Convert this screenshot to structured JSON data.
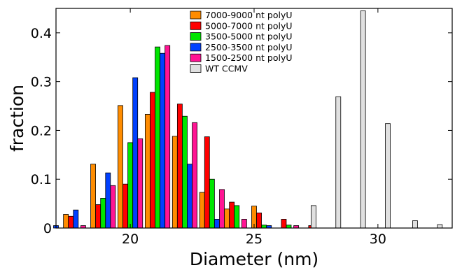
{
  "chart_data": {
    "type": "bar",
    "xlabel": "Diameter (nm)",
    "ylabel": "fraction",
    "xlim": [
      17.0,
      33.0
    ],
    "ylim": [
      0,
      0.45
    ],
    "xticks": [
      20,
      25,
      30
    ],
    "yticks": [
      0,
      0.1,
      0.2,
      0.3,
      0.4
    ],
    "ytick_labels": [
      "0",
      "0.1",
      "0.2",
      "0.3",
      "0.4"
    ],
    "grid": false,
    "legend_position": "top-center",
    "series": [
      {
        "name": "7000-9000 nt polyU",
        "color": "#ff8c00",
        "points": [
          {
            "x": 17.4,
            "y": 0.028
          },
          {
            "x": 18.5,
            "y": 0.131
          },
          {
            "x": 19.6,
            "y": 0.251
          },
          {
            "x": 20.7,
            "y": 0.233
          },
          {
            "x": 21.8,
            "y": 0.188
          },
          {
            "x": 22.9,
            "y": 0.073
          },
          {
            "x": 23.9,
            "y": 0.039
          },
          {
            "x": 25.0,
            "y": 0.045
          }
        ]
      },
      {
        "name": "5000-7000 nt polyU",
        "color": "#ff0000",
        "points": [
          {
            "x": 17.6,
            "y": 0.024
          },
          {
            "x": 18.7,
            "y": 0.048
          },
          {
            "x": 19.8,
            "y": 0.09
          },
          {
            "x": 20.9,
            "y": 0.278
          },
          {
            "x": 22.0,
            "y": 0.254
          },
          {
            "x": 23.1,
            "y": 0.187
          },
          {
            "x": 24.1,
            "y": 0.053
          },
          {
            "x": 25.2,
            "y": 0.031
          },
          {
            "x": 26.2,
            "y": 0.018
          },
          {
            "x": 27.3,
            "y": 0.005
          }
        ]
      },
      {
        "name": "3500-5000 nt polyU",
        "color": "#00e600",
        "points": [
          {
            "x": 18.9,
            "y": 0.061
          },
          {
            "x": 20.0,
            "y": 0.175
          },
          {
            "x": 21.1,
            "y": 0.371
          },
          {
            "x": 22.2,
            "y": 0.229
          },
          {
            "x": 23.3,
            "y": 0.1
          },
          {
            "x": 24.3,
            "y": 0.046
          },
          {
            "x": 25.4,
            "y": 0.006
          },
          {
            "x": 26.4,
            "y": 0.006
          }
        ]
      },
      {
        "name": "2500-3500 nt polyU",
        "color": "#0040ff",
        "points": [
          {
            "x": 17.0,
            "y": 0.005
          },
          {
            "x": 17.8,
            "y": 0.037
          },
          {
            "x": 19.1,
            "y": 0.113
          },
          {
            "x": 20.2,
            "y": 0.308
          },
          {
            "x": 21.3,
            "y": 0.358
          },
          {
            "x": 22.4,
            "y": 0.131
          },
          {
            "x": 23.5,
            "y": 0.018
          },
          {
            "x": 25.6,
            "y": 0.005
          }
        ]
      },
      {
        "name": "1500-2500 nt polyU",
        "color": "#ff1493",
        "points": [
          {
            "x": 18.1,
            "y": 0.005
          },
          {
            "x": 19.3,
            "y": 0.087
          },
          {
            "x": 20.4,
            "y": 0.183
          },
          {
            "x": 21.5,
            "y": 0.374
          },
          {
            "x": 22.6,
            "y": 0.216
          },
          {
            "x": 23.7,
            "y": 0.079
          },
          {
            "x": 24.6,
            "y": 0.018
          },
          {
            "x": 26.7,
            "y": 0.005
          }
        ]
      },
      {
        "name": "WT CCMV",
        "color": "#e0e0e0",
        "points": [
          {
            "x": 27.4,
            "y": 0.046
          },
          {
            "x": 28.4,
            "y": 0.269
          },
          {
            "x": 29.4,
            "y": 0.445
          },
          {
            "x": 30.4,
            "y": 0.214
          },
          {
            "x": 31.5,
            "y": 0.015
          },
          {
            "x": 32.5,
            "y": 0.007
          }
        ]
      }
    ]
  }
}
